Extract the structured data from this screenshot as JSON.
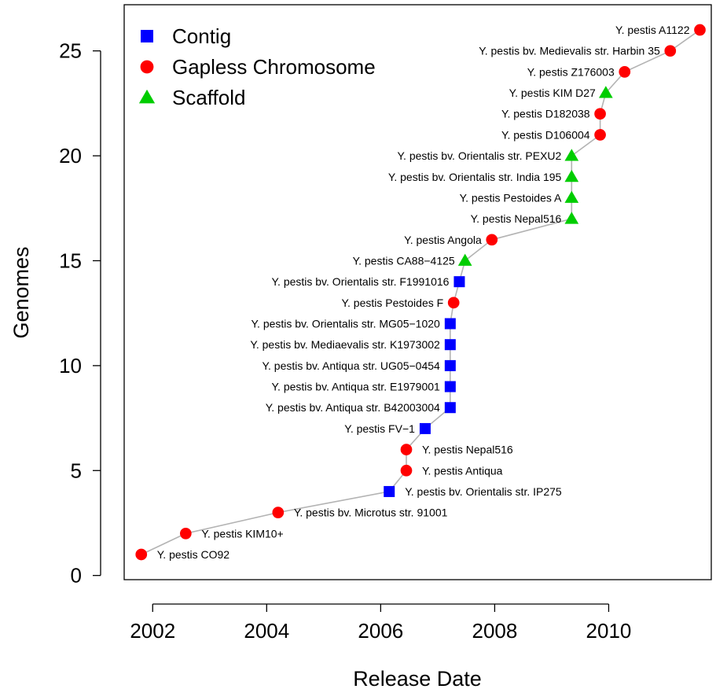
{
  "chart_data": {
    "type": "scatter",
    "xlabel": "Release Date",
    "ylabel": "Genomes",
    "xlim": [
      2001.5,
      2011.8
    ],
    "ylim": [
      -0.2,
      27.2
    ],
    "x_ticks": [
      2002,
      2004,
      2006,
      2008,
      2010
    ],
    "y_ticks": [
      0,
      5,
      10,
      15,
      20,
      25
    ],
    "grid": false,
    "legend_position": "top-left",
    "line_color": "#b3b3b3",
    "legend": [
      {
        "name": "Contig",
        "shape": "square",
        "color": "#0000ff"
      },
      {
        "name": "Gapless Chromosome",
        "shape": "circle",
        "color": "#ff0000"
      },
      {
        "name": "Scaffold",
        "shape": "triangle",
        "color": "#00cd00"
      }
    ],
    "points": [
      {
        "x": 2001.8,
        "y": 1,
        "label": "Y. pestis CO92",
        "status": "Gapless Chromosome",
        "side": "right"
      },
      {
        "x": 2002.58,
        "y": 2,
        "label": "Y. pestis KIM10+",
        "status": "Gapless Chromosome",
        "side": "right"
      },
      {
        "x": 2004.2,
        "y": 3,
        "label": "Y. pestis bv. Microtus str. 91001",
        "status": "Gapless Chromosome",
        "side": "right"
      },
      {
        "x": 2006.15,
        "y": 4,
        "label": "Y. pestis bv. Orientalis str. IP275",
        "status": "Contig",
        "side": "right"
      },
      {
        "x": 2006.45,
        "y": 5,
        "label": "Y. pestis Antiqua",
        "status": "Gapless Chromosome",
        "side": "right"
      },
      {
        "x": 2006.45,
        "y": 6,
        "label": "Y. pestis Nepal516",
        "status": "Gapless Chromosome",
        "side": "right"
      },
      {
        "x": 2006.78,
        "y": 7,
        "label": "Y. pestis FV−1",
        "status": "Contig",
        "side": "left"
      },
      {
        "x": 2007.22,
        "y": 8,
        "label": "Y. pestis bv. Antiqua str. B42003004",
        "status": "Contig",
        "side": "left"
      },
      {
        "x": 2007.22,
        "y": 9,
        "label": "Y. pestis bv. Antiqua str. E1979001",
        "status": "Contig",
        "side": "left"
      },
      {
        "x": 2007.22,
        "y": 10,
        "label": "Y. pestis bv. Antiqua str. UG05−0454",
        "status": "Contig",
        "side": "left"
      },
      {
        "x": 2007.22,
        "y": 11,
        "label": "Y. pestis bv. Mediaevalis str. K1973002",
        "status": "Contig",
        "side": "left"
      },
      {
        "x": 2007.22,
        "y": 12,
        "label": "Y. pestis bv. Orientalis str. MG05−1020",
        "status": "Contig",
        "side": "left"
      },
      {
        "x": 2007.28,
        "y": 13,
        "label": "Y. pestis Pestoides F",
        "status": "Gapless Chromosome",
        "side": "left"
      },
      {
        "x": 2007.38,
        "y": 14,
        "label": "Y. pestis bv. Orientalis str. F1991016",
        "status": "Contig",
        "side": "left"
      },
      {
        "x": 2007.48,
        "y": 15,
        "label": "Y. pestis CA88−4125",
        "status": "Scaffold",
        "side": "left"
      },
      {
        "x": 2007.95,
        "y": 16,
        "label": "Y. pestis Angola",
        "status": "Gapless Chromosome",
        "side": "left"
      },
      {
        "x": 2009.35,
        "y": 17,
        "label": "Y. pestis Nepal516",
        "status": "Scaffold",
        "side": "left"
      },
      {
        "x": 2009.35,
        "y": 18,
        "label": "Y. pestis Pestoides A",
        "status": "Scaffold",
        "side": "left"
      },
      {
        "x": 2009.35,
        "y": 19,
        "label": "Y. pestis bv. Orientalis str. India 195",
        "status": "Scaffold",
        "side": "left"
      },
      {
        "x": 2009.35,
        "y": 20,
        "label": "Y. pestis bv. Orientalis str. PEXU2",
        "status": "Scaffold",
        "side": "left"
      },
      {
        "x": 2009.85,
        "y": 21,
        "label": "Y. pestis D106004",
        "status": "Gapless Chromosome",
        "side": "left"
      },
      {
        "x": 2009.85,
        "y": 22,
        "label": "Y. pestis D182038",
        "status": "Gapless Chromosome",
        "side": "left"
      },
      {
        "x": 2009.95,
        "y": 23,
        "label": "Y. pestis KIM D27",
        "status": "Scaffold",
        "side": "left"
      },
      {
        "x": 2010.28,
        "y": 24,
        "label": "Y. pestis Z176003",
        "status": "Gapless Chromosome",
        "side": "left"
      },
      {
        "x": 2011.08,
        "y": 25,
        "label": "Y. pestis bv. Medievalis str. Harbin 35",
        "status": "Gapless Chromosome",
        "side": "left"
      },
      {
        "x": 2011.6,
        "y": 26,
        "label": "Y. pestis A1122",
        "status": "Gapless Chromosome",
        "side": "left"
      }
    ]
  }
}
